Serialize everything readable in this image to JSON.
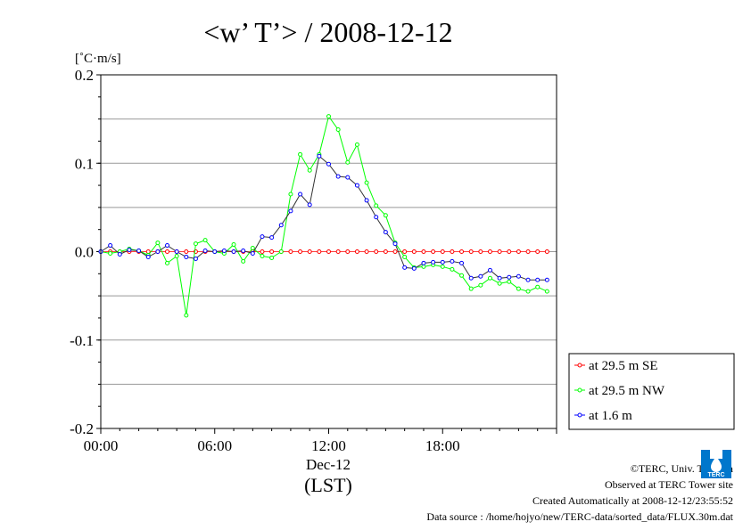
{
  "chart_data": {
    "type": "line",
    "title": "<w’ T’> / 2008-12-12",
    "ylabel": "[˚C·m/s]",
    "xlabel": "(LST)",
    "x_date_label": "Dec-12",
    "x_tick_labels": [
      "00:00",
      "06:00",
      "12:00",
      "18:00"
    ],
    "x_tick_hours": [
      0,
      6,
      12,
      18
    ],
    "xlim_hours": [
      0,
      24
    ],
    "ylim": [
      -0.2,
      0.2
    ],
    "y_tick_labels": [
      "-0.2",
      "-0.1",
      "0.0",
      "0.1",
      "0.2"
    ],
    "y_ticks": [
      -0.2,
      -0.1,
      0.0,
      0.1,
      0.2
    ],
    "grid": true,
    "legend_position": "right",
    "x_hours": [
      0,
      0.5,
      1,
      1.5,
      2,
      2.5,
      3,
      3.5,
      4,
      4.5,
      5,
      5.5,
      6,
      6.5,
      7,
      7.5,
      8,
      8.5,
      9,
      9.5,
      10,
      10.5,
      11,
      11.5,
      12,
      12.5,
      13,
      13.5,
      14,
      14.5,
      15,
      15.5,
      16,
      16.5,
      17,
      17.5,
      18,
      18.5,
      19,
      19.5,
      20,
      20.5,
      21,
      21.5,
      22,
      22.5,
      23,
      23.5
    ],
    "series": [
      {
        "name": "at 29.5 m SE",
        "color": "#ff0000",
        "values": [
          0,
          0,
          0,
          0,
          0,
          0,
          0,
          0,
          0,
          0,
          0,
          0,
          0,
          0,
          0,
          0,
          0,
          0,
          0,
          0,
          0,
          0,
          0,
          0,
          0,
          0,
          0,
          0,
          0,
          0,
          0,
          0,
          0,
          0,
          0,
          0,
          0,
          0,
          0,
          0,
          0,
          0,
          0,
          0,
          0,
          0,
          0,
          0
        ]
      },
      {
        "name": "at 29.5 m NW",
        "color": "#00ff00",
        "values": [
          0.0,
          -0.002,
          0.0,
          0.003,
          0.001,
          -0.004,
          0.01,
          -0.013,
          -0.005,
          -0.072,
          0.009,
          0.013,
          0.0,
          -0.002,
          0.008,
          -0.011,
          0.004,
          -0.005,
          -0.007,
          0.0,
          0.065,
          0.11,
          0.092,
          0.11,
          0.153,
          0.138,
          0.101,
          0.121,
          0.078,
          0.052,
          0.041,
          0.01,
          -0.006,
          -0.018,
          -0.017,
          -0.015,
          -0.017,
          -0.02,
          -0.027,
          -0.042,
          -0.038,
          -0.03,
          -0.036,
          -0.034,
          -0.042,
          -0.045,
          -0.04,
          -0.045
        ]
      },
      {
        "name": "at 1.6 m",
        "color": "#0000ff",
        "values": [
          0.0,
          0.007,
          -0.003,
          0.002,
          0.001,
          -0.006,
          0.0,
          0.007,
          0.0,
          -0.006,
          -0.008,
          0.001,
          0.0,
          0.001,
          0.0,
          0.001,
          -0.002,
          0.017,
          0.016,
          0.03,
          0.046,
          0.065,
          0.053,
          0.108,
          0.099,
          0.085,
          0.084,
          0.075,
          0.058,
          0.039,
          0.022,
          0.009,
          -0.018,
          -0.019,
          -0.013,
          -0.012,
          -0.012,
          -0.011,
          -0.013,
          -0.03,
          -0.028,
          -0.021,
          -0.03,
          -0.029,
          -0.028,
          -0.032,
          -0.032,
          -0.032
        ]
      }
    ]
  },
  "footer": {
    "copyright": "©TERC, Univ. Tsukuba",
    "observed": "Observed at TERC Tower site",
    "created": "Created Automatically at 2008-12-12/23:55:52",
    "source": "Data source : /home/hojyo/new/TERC-data/sorted_data/FLUX.30m.dat"
  },
  "logo": {
    "text": "TERC",
    "color": "#0077cc",
    "icon": "terc-logo-icon"
  }
}
